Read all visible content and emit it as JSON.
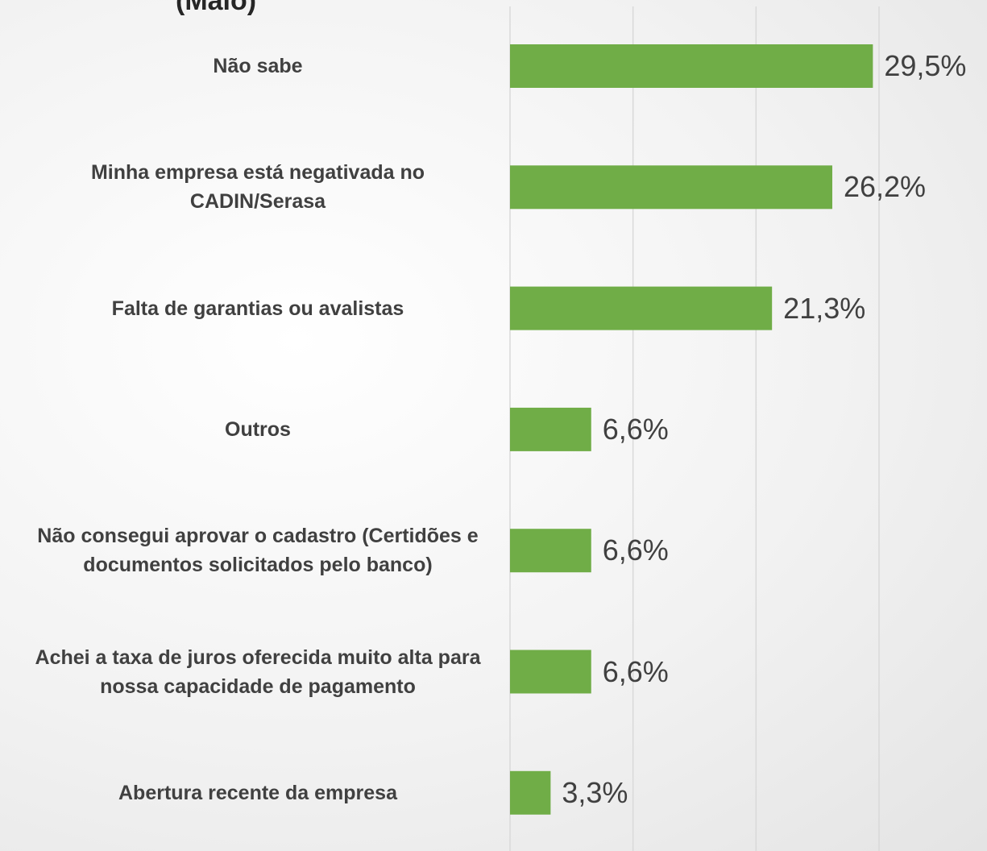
{
  "chart_data": {
    "type": "barh",
    "title": "(Maio)",
    "categories": [
      "Não sabe",
      "Minha empresa está negativada no CADIN/Serasa",
      "Falta de garantias ou avalistas",
      "Outros",
      "Não consegui aprovar o cadastro (Certidões e documentos solicitados pelo banco)",
      "Achei a taxa de juros oferecida muito alta para nossa capacidade de pagamento",
      "Abertura recente da empresa"
    ],
    "values": [
      29.5,
      26.2,
      21.3,
      6.6,
      6.6,
      6.6,
      3.3
    ],
    "value_labels": [
      "29,5%",
      "26,2%",
      "21,3%",
      "6,6%",
      "6,6%",
      "6,6%",
      "3,3%"
    ],
    "color": "#70ad47",
    "xlim": [
      0,
      30
    ],
    "xticks": [
      0,
      10,
      20,
      30
    ],
    "grid": true
  }
}
